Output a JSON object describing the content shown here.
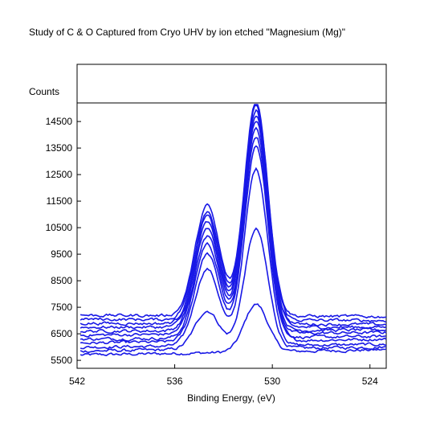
{
  "chart_data": {
    "type": "line",
    "title": "Study of C & O Captured from Cryo UHV by ion etched \"Magnesium (Mg)\"",
    "xlabel": "Binding Energy, (eV)",
    "ylabel": "Counts",
    "xlim": [
      542,
      523
    ],
    "ylim": [
      5200,
      15200
    ],
    "x_reversed": true,
    "x_ticks": [
      542,
      536,
      530,
      524
    ],
    "y_ticks": [
      5500,
      6500,
      7500,
      8500,
      9500,
      10500,
      11500,
      12500,
      13500,
      14500
    ],
    "y_tick_labels": [
      "5500",
      "6500",
      "7500",
      "8500",
      "9500",
      "10500",
      "11500",
      "12500",
      "13500",
      "14500"
    ],
    "x_tick_labels": [
      "542",
      "536",
      "530",
      "524"
    ],
    "grid": false,
    "line_color": "#1818e6",
    "series_model": "two gaussian peaks (O 1s region) on sloped background, one trace per etch step",
    "peak1_center_ev": 534.0,
    "peak2_center_ev": 531.0,
    "series": [
      {
        "left": 5700,
        "right": 5900,
        "peak1": 0,
        "peak2": 1800
      },
      {
        "left": 5850,
        "right": 6000,
        "peak1": 1450,
        "peak2": 4500
      },
      {
        "left": 6000,
        "right": 6100,
        "peak1": 2900,
        "peak2": 6650
      },
      {
        "left": 6150,
        "right": 6300,
        "peak1": 3300,
        "peak2": 7350
      },
      {
        "left": 6300,
        "right": 6400,
        "peak1": 3550,
        "peak2": 7600
      },
      {
        "left": 6450,
        "right": 6550,
        "peak1": 3700,
        "peak2": 7800
      },
      {
        "left": 6600,
        "right": 6650,
        "peak1": 3850,
        "peak2": 7950
      },
      {
        "left": 6750,
        "right": 6750,
        "peak1": 3950,
        "peak2": 8000
      },
      {
        "left": 6900,
        "right": 6850,
        "peak1": 4050,
        "peak2": 8050
      },
      {
        "left": 7050,
        "right": 7000,
        "peak1": 4100,
        "peak2": 8100
      },
      {
        "left": 7200,
        "right": 7150,
        "peak1": 4150,
        "peak2": 8100
      }
    ]
  }
}
